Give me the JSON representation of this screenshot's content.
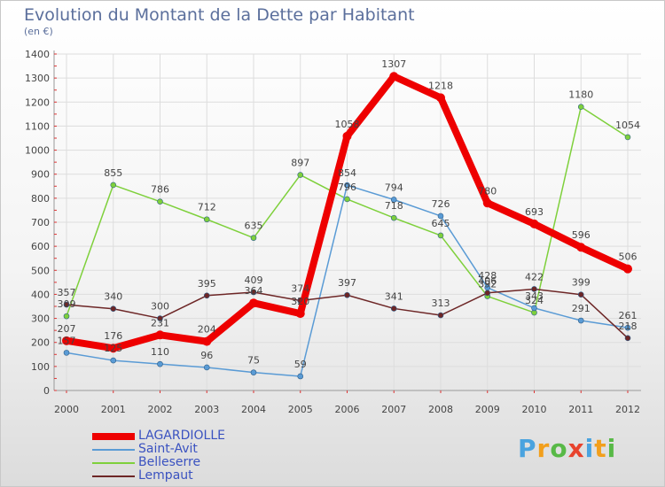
{
  "title": "Evolution du Montant de la Dette par Habitant",
  "subtitle": "(en €)",
  "logo": {
    "letters": [
      "P",
      "r",
      "o",
      "x",
      "i",
      "t",
      "i"
    ],
    "colors": [
      "#4aa3df",
      "#f29f1c",
      "#58b947",
      "#e8432d",
      "#4aa3df",
      "#f29f1c",
      "#58b947"
    ]
  },
  "chart_data": {
    "type": "line",
    "x": [
      "2000",
      "2001",
      "2002",
      "2003",
      "2004",
      "2005",
      "2006",
      "2007",
      "2008",
      "2009",
      "2010",
      "2011",
      "2012"
    ],
    "ylim": [
      0,
      1400
    ],
    "yticks": [
      "0",
      "100",
      "200",
      "300",
      "400",
      "500",
      "600",
      "700",
      "800",
      "900",
      "1000",
      "1100",
      "1200",
      "1300",
      "1400"
    ],
    "grid": true,
    "legend": "bottom-left",
    "series": [
      {
        "name": "LAGARDIOLLE",
        "color": "#ee0000",
        "values": [
          207,
          176,
          231,
          204,
          364,
          320,
          1058,
          1307,
          1218,
          780,
          693,
          596,
          506
        ],
        "labels": [
          "207",
          "176",
          "231",
          "204",
          "364",
          "320",
          "1058",
          "1307",
          "1218",
          "780",
          "693",
          "596",
          "506"
        ]
      },
      {
        "name": "Saint-Avit",
        "color": "#5a9bd5",
        "values": [
          157,
          125,
          110,
          96,
          75,
          59,
          854,
          794,
          726,
          428,
          343,
          291,
          261
        ],
        "labels": [
          "157",
          "125",
          "110",
          "96",
          "75",
          "59",
          "854",
          "794",
          "726",
          "428",
          "343",
          "291",
          "261"
        ]
      },
      {
        "name": "Belleserre",
        "color": "#7ed03b",
        "values": [
          309,
          855,
          786,
          712,
          635,
          897,
          796,
          718,
          645,
          392,
          324,
          1180,
          1054
        ],
        "labels": [
          "309",
          "855",
          "786",
          "712",
          "635",
          "897",
          "796",
          "718",
          "645",
          "392",
          "324",
          "1180",
          "1054"
        ]
      },
      {
        "name": "Lempaut",
        "color": "#6d2626",
        "values": [
          357,
          340,
          300,
          395,
          409,
          374,
          397,
          341,
          313,
          406,
          422,
          399,
          218
        ],
        "labels": [
          "357",
          "340",
          "300",
          "395",
          "409",
          "374",
          "397",
          "341",
          "313",
          "406",
          "422",
          "399",
          "218"
        ]
      }
    ]
  }
}
